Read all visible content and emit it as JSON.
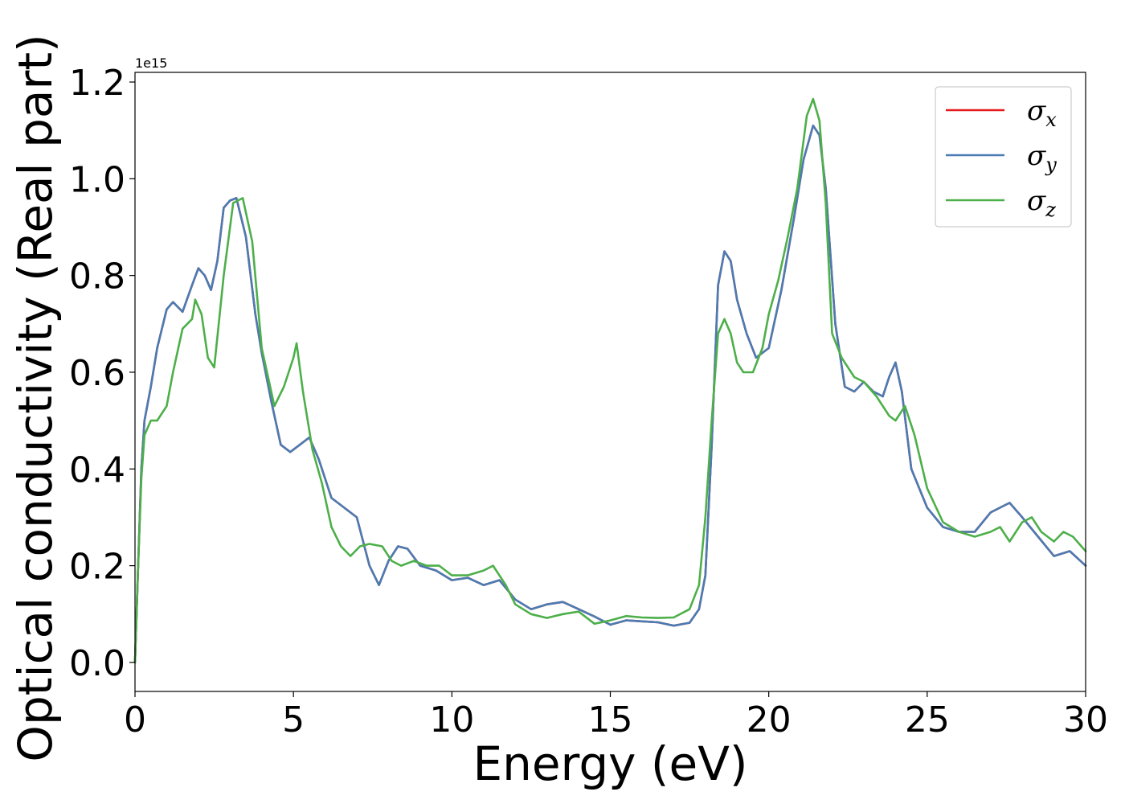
{
  "chart_data": {
    "type": "line",
    "title": "",
    "xlabel": "Energy (eV)",
    "ylabel": "Optical conductivity (Real part)",
    "y_offset_label": "1e15",
    "xlim": [
      0,
      30
    ],
    "ylim": [
      -0.06,
      1.22
    ],
    "x_ticks": [
      0,
      5,
      10,
      15,
      20,
      25,
      30
    ],
    "x_tick_labels": [
      "0",
      "5",
      "10",
      "15",
      "20",
      "25",
      "30"
    ],
    "y_ticks": [
      0.0,
      0.2,
      0.4,
      0.6,
      0.8,
      1.0,
      1.2
    ],
    "y_tick_labels": [
      "0.0",
      "0.2",
      "0.4",
      "0.6",
      "0.8",
      "1.0",
      "1.2"
    ],
    "grid": false,
    "legend_position": "top-right",
    "series": [
      {
        "name": "σx",
        "symbol": "σ",
        "subscript": "x",
        "color": "#e41a1c",
        "x": [
          0,
          0.1,
          0.2,
          0.3,
          0.5,
          0.7,
          1.0,
          1.2,
          1.5,
          1.8,
          2.0,
          2.2,
          2.4,
          2.6,
          2.8,
          3.0,
          3.2,
          3.5,
          3.8,
          4.0,
          4.3,
          4.6,
          4.9,
          5.2,
          5.5,
          5.8,
          6.2,
          6.6,
          7.0,
          7.4,
          7.7,
          8.0,
          8.3,
          8.6,
          9.0,
          9.5,
          10.0,
          10.5,
          11.0,
          11.5,
          12.0,
          12.5,
          13.0,
          13.5,
          14.0,
          14.5,
          15.0,
          15.5,
          16.0,
          16.5,
          17.0,
          17.5,
          17.8,
          18.0,
          18.2,
          18.4,
          18.6,
          18.8,
          19.0,
          19.3,
          19.6,
          20.0,
          20.4,
          20.8,
          21.1,
          21.4,
          21.6,
          21.8,
          22.1,
          22.4,
          22.7,
          23.0,
          23.3,
          23.6,
          23.8,
          24.0,
          24.2,
          24.5,
          25.0,
          25.5,
          26.0,
          26.5,
          27.0,
          27.3,
          27.6,
          28.0,
          28.5,
          29.0,
          29.5,
          30.0
        ],
        "y": [
          0.0,
          0.2,
          0.4,
          0.5,
          0.57,
          0.65,
          0.73,
          0.745,
          0.725,
          0.78,
          0.815,
          0.8,
          0.77,
          0.83,
          0.94,
          0.955,
          0.96,
          0.88,
          0.72,
          0.64,
          0.54,
          0.45,
          0.435,
          0.45,
          0.465,
          0.42,
          0.34,
          0.32,
          0.3,
          0.2,
          0.16,
          0.21,
          0.24,
          0.235,
          0.2,
          0.19,
          0.17,
          0.175,
          0.16,
          0.17,
          0.13,
          0.11,
          0.12,
          0.125,
          0.11,
          0.095,
          0.078,
          0.087,
          0.085,
          0.083,
          0.076,
          0.082,
          0.11,
          0.18,
          0.45,
          0.78,
          0.85,
          0.83,
          0.75,
          0.68,
          0.63,
          0.65,
          0.77,
          0.92,
          1.04,
          1.11,
          1.09,
          0.98,
          0.7,
          0.57,
          0.56,
          0.58,
          0.56,
          0.55,
          0.59,
          0.62,
          0.56,
          0.4,
          0.32,
          0.28,
          0.27,
          0.27,
          0.31,
          0.32,
          0.33,
          0.3,
          0.26,
          0.22,
          0.23,
          0.2
        ]
      },
      {
        "name": "σy",
        "symbol": "σ",
        "subscript": "y",
        "color": "#4a7cb3",
        "x": [
          0,
          0.1,
          0.2,
          0.3,
          0.5,
          0.7,
          1.0,
          1.2,
          1.5,
          1.8,
          2.0,
          2.2,
          2.4,
          2.6,
          2.8,
          3.0,
          3.2,
          3.5,
          3.8,
          4.0,
          4.3,
          4.6,
          4.9,
          5.2,
          5.5,
          5.8,
          6.2,
          6.6,
          7.0,
          7.4,
          7.7,
          8.0,
          8.3,
          8.6,
          9.0,
          9.5,
          10.0,
          10.5,
          11.0,
          11.5,
          12.0,
          12.5,
          13.0,
          13.5,
          14.0,
          14.5,
          15.0,
          15.5,
          16.0,
          16.5,
          17.0,
          17.5,
          17.8,
          18.0,
          18.2,
          18.4,
          18.6,
          18.8,
          19.0,
          19.3,
          19.6,
          20.0,
          20.4,
          20.8,
          21.1,
          21.4,
          21.6,
          21.8,
          22.1,
          22.4,
          22.7,
          23.0,
          23.3,
          23.6,
          23.8,
          24.0,
          24.2,
          24.5,
          25.0,
          25.5,
          26.0,
          26.5,
          27.0,
          27.3,
          27.6,
          28.0,
          28.5,
          29.0,
          29.5,
          30.0
        ],
        "y": [
          0.0,
          0.2,
          0.4,
          0.5,
          0.57,
          0.65,
          0.73,
          0.745,
          0.725,
          0.78,
          0.815,
          0.8,
          0.77,
          0.83,
          0.94,
          0.955,
          0.96,
          0.88,
          0.72,
          0.64,
          0.54,
          0.45,
          0.435,
          0.45,
          0.465,
          0.42,
          0.34,
          0.32,
          0.3,
          0.2,
          0.16,
          0.21,
          0.24,
          0.235,
          0.2,
          0.19,
          0.17,
          0.175,
          0.16,
          0.17,
          0.13,
          0.11,
          0.12,
          0.125,
          0.11,
          0.095,
          0.078,
          0.087,
          0.085,
          0.083,
          0.076,
          0.082,
          0.11,
          0.18,
          0.45,
          0.78,
          0.85,
          0.83,
          0.75,
          0.68,
          0.63,
          0.65,
          0.77,
          0.92,
          1.04,
          1.11,
          1.09,
          0.98,
          0.7,
          0.57,
          0.56,
          0.58,
          0.56,
          0.55,
          0.59,
          0.62,
          0.56,
          0.4,
          0.32,
          0.28,
          0.27,
          0.27,
          0.31,
          0.32,
          0.33,
          0.3,
          0.26,
          0.22,
          0.23,
          0.2
        ]
      },
      {
        "name": "σz",
        "symbol": "σ",
        "subscript": "z",
        "color": "#4daf4a",
        "x": [
          0,
          0.1,
          0.2,
          0.3,
          0.5,
          0.7,
          1.0,
          1.2,
          1.5,
          1.8,
          1.9,
          2.1,
          2.3,
          2.5,
          2.8,
          3.1,
          3.4,
          3.7,
          4.0,
          4.4,
          4.7,
          5.0,
          5.1,
          5.3,
          5.6,
          5.9,
          6.2,
          6.5,
          6.8,
          7.1,
          7.4,
          7.8,
          8.1,
          8.4,
          8.8,
          9.2,
          9.6,
          10.0,
          10.5,
          11.0,
          11.3,
          11.7,
          12.0,
          12.5,
          13.0,
          13.5,
          14.0,
          14.5,
          15.0,
          15.5,
          16.0,
          16.5,
          17.0,
          17.5,
          17.8,
          18.0,
          18.2,
          18.4,
          18.6,
          18.8,
          19.0,
          19.2,
          19.5,
          19.8,
          20.0,
          20.3,
          20.6,
          20.9,
          21.2,
          21.4,
          21.6,
          21.8,
          22.0,
          22.3,
          22.7,
          23.0,
          23.4,
          23.8,
          24.0,
          24.3,
          24.6,
          25.0,
          25.5,
          26.0,
          26.5,
          27.0,
          27.3,
          27.6,
          28.0,
          28.3,
          28.6,
          29.0,
          29.3,
          29.6,
          30.0
        ],
        "y": [
          0.0,
          0.2,
          0.38,
          0.47,
          0.5,
          0.5,
          0.53,
          0.6,
          0.69,
          0.71,
          0.75,
          0.72,
          0.63,
          0.61,
          0.8,
          0.95,
          0.96,
          0.87,
          0.65,
          0.53,
          0.57,
          0.63,
          0.66,
          0.56,
          0.44,
          0.37,
          0.28,
          0.24,
          0.22,
          0.24,
          0.245,
          0.24,
          0.21,
          0.2,
          0.21,
          0.2,
          0.2,
          0.18,
          0.18,
          0.19,
          0.2,
          0.16,
          0.12,
          0.1,
          0.092,
          0.1,
          0.105,
          0.08,
          0.087,
          0.096,
          0.093,
          0.092,
          0.093,
          0.11,
          0.16,
          0.3,
          0.5,
          0.68,
          0.71,
          0.68,
          0.62,
          0.6,
          0.6,
          0.65,
          0.72,
          0.79,
          0.88,
          0.98,
          1.13,
          1.165,
          1.12,
          0.95,
          0.68,
          0.63,
          0.59,
          0.58,
          0.55,
          0.51,
          0.5,
          0.53,
          0.47,
          0.36,
          0.29,
          0.27,
          0.26,
          0.27,
          0.28,
          0.25,
          0.29,
          0.3,
          0.27,
          0.25,
          0.27,
          0.26,
          0.23
        ]
      }
    ]
  }
}
